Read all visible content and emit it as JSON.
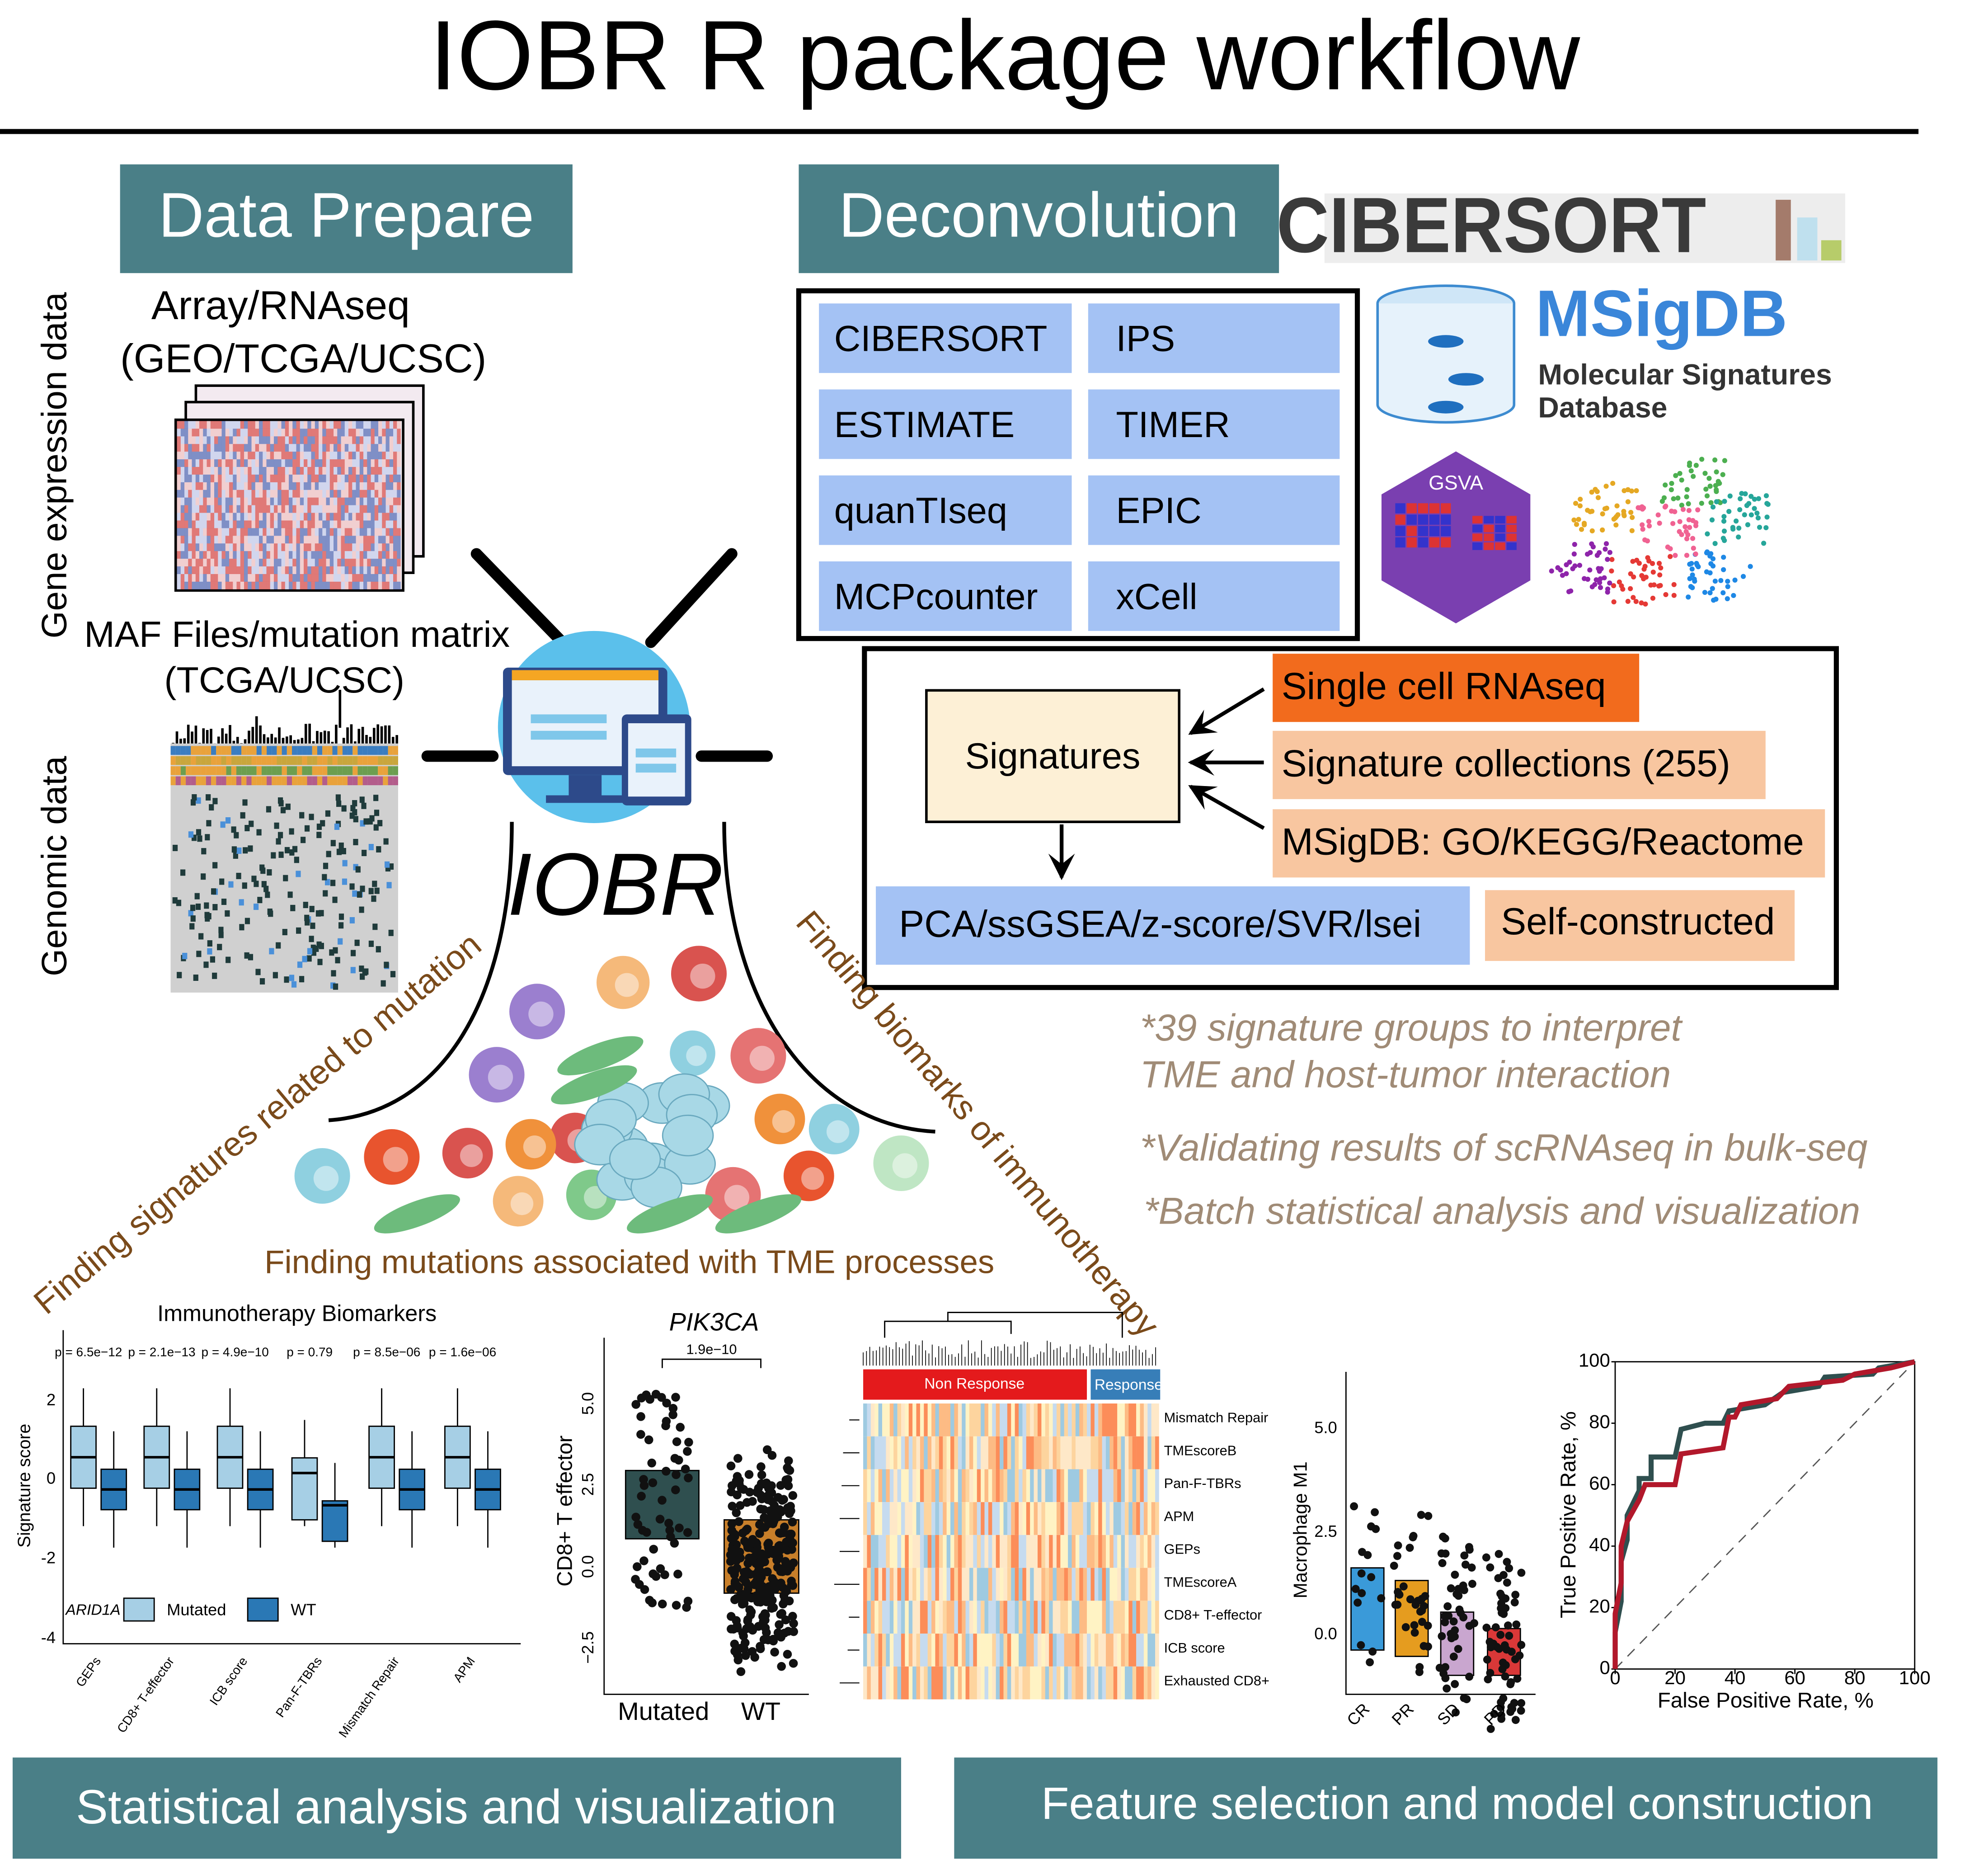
{
  "title": "IOBR R package workflow",
  "data_prepare": {
    "header": "Data Prepare",
    "expression_axis": "Gene expression data",
    "expression_source": [
      "Array/RNAseq",
      "(GEO/TCGA/UCSC)"
    ],
    "mutation_source": [
      "MAF Files/mutation matrix",
      "(TCGA/UCSC)"
    ],
    "genomic_axis": "Genomic data"
  },
  "deconvolution": {
    "header": "Deconvolution",
    "methods": [
      "CIBERSORT",
      "IPS",
      "ESTIMATE",
      "TIMER",
      "quanTIseq",
      "EPIC",
      "MCPcounter",
      "xCell"
    ],
    "cibersort_logo": "CIBERSORT",
    "msigdb_logo": "MSigDB",
    "msigdb_subtitle": [
      "Molecular Signatures",
      "Database"
    ],
    "gsva_logo": "GSVA"
  },
  "signatures": {
    "label": "Signatures",
    "sources": [
      "Single cell RNAseq",
      "Signature collections (255)",
      "MSigDB: GO/KEGG/Reactome"
    ],
    "scoring_methods": "PCA/ssGSEA/z-score/SVR/lsei",
    "custom": "Self-constructed"
  },
  "notes": [
    [
      "*39 signature groups to interpret",
      "TME and host-tumor interaction"
    ],
    [
      "*Validating results of scRNAseq in bulk-seq"
    ],
    [
      "*Batch statistical analysis and visualization"
    ]
  ],
  "hub": {
    "logo": "IOBR",
    "left_arc": "Finding signatures related to mutation",
    "right_arc": "Finding biomarks of immunotherapy",
    "bottom": "Finding mutations associated with TME processes"
  },
  "plots": [
    {
      "title": "Immunotherapy Biomarkers",
      "y_label": "Signature score",
      "yticks": [
        "2",
        "0",
        "-2",
        "-4"
      ],
      "p_values": [
        "p = 6.5e−12",
        "p = 2.1e−13",
        "p = 4.9e−10",
        "p = 0.79",
        "p = 8.5e−06",
        "p = 1.6e−06"
      ],
      "categories": [
        "GEPs",
        "CD8+ T-effector",
        "ICB score",
        "Pan-F-TBRs",
        "Mismatch Repair",
        "APM"
      ],
      "legend_title": "ARID1A",
      "legend": [
        "Mutated",
        "WT"
      ]
    },
    {
      "title": "PIK3CA",
      "y_label": "CD8+ T effector",
      "yticks": [
        "5.0",
        "2.5",
        "0.0",
        "−2.5"
      ],
      "p_value": "1.9e−10",
      "categories": [
        "Mutated",
        "WT"
      ]
    },
    {
      "groups": [
        "Non Response",
        "Response"
      ],
      "rows": [
        "Mismatch Repair",
        "TMEscoreB",
        "Pan-F-TBRs",
        "APM",
        "GEPs",
        "TMEscoreA",
        "CD8+ T-effector",
        "ICB score",
        "Exhausted CD8+"
      ]
    },
    {
      "y_label": "Macrophage M1",
      "yticks": [
        "5.0",
        "2.5",
        "0.0"
      ],
      "categories": [
        "CR",
        "PR",
        "SD",
        "PD"
      ]
    },
    {
      "x_label": "False Positive Rate, %",
      "y_label": "True Positive Rate, %",
      "xticks": [
        0,
        20,
        40,
        60,
        80,
        100
      ],
      "yticks": [
        0,
        20,
        40,
        60,
        80,
        100
      ]
    }
  ],
  "footer": [
    "Statistical analysis and visualization",
    "Feature selection and model construction"
  ]
}
